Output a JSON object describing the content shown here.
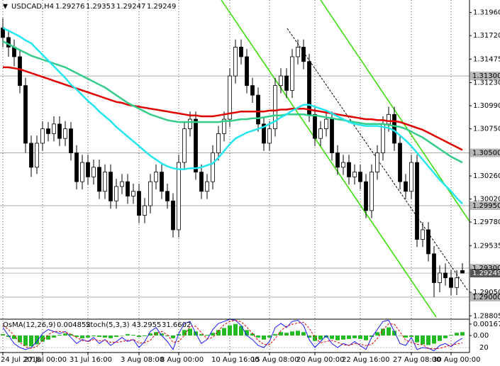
{
  "chart_data": {
    "type": "candlestick",
    "title": "USDCAD,H4",
    "categories": [
      "24 Jul 2018",
      null,
      null,
      null,
      null,
      null,
      null,
      "27 Jul 00:00",
      null,
      null,
      null,
      null,
      null,
      null,
      null,
      "31 Jul 16:00",
      null,
      null,
      null,
      null,
      null,
      null,
      null,
      null,
      "3 Aug 08:00",
      null,
      null,
      null,
      null,
      null,
      null,
      "8 Aug 00:00",
      null,
      null,
      null,
      null,
      null,
      null,
      null,
      null,
      "10 Aug 16:00",
      null,
      null,
      null,
      null,
      null,
      null,
      "15 Aug 08:00",
      null,
      null,
      null,
      null,
      null,
      null,
      null,
      "20 Aug 00:00",
      null,
      null,
      null,
      null,
      null,
      null,
      null,
      "22 Aug 16:00",
      null,
      null,
      null,
      null,
      null,
      null,
      null,
      null,
      "27 Aug 08:00",
      null,
      null,
      null,
      null,
      null,
      null,
      "30 Aug 00:00",
      null,
      null
    ],
    "candles": [
      [
        1.318,
        1.319,
        1.316,
        1.317
      ],
      [
        1.317,
        1.3178,
        1.315,
        1.316
      ],
      [
        1.316,
        1.3168,
        1.314,
        1.315
      ],
      [
        1.315,
        1.3158,
        1.3112,
        1.312
      ],
      [
        1.312,
        1.3128,
        1.305,
        1.306
      ],
      [
        1.306,
        1.3068,
        1.3025,
        1.3035
      ],
      [
        1.3035,
        1.3068,
        1.3028,
        1.306
      ],
      [
        1.306,
        1.3083,
        1.3052,
        1.3075
      ],
      [
        1.3075,
        1.3082,
        1.3062,
        1.307
      ],
      [
        1.307,
        1.3088,
        1.3062,
        1.308
      ],
      [
        1.308,
        1.3088,
        1.3057,
        1.3065
      ],
      [
        1.3065,
        1.3083,
        1.3057,
        1.3075
      ],
      [
        1.3075,
        1.3082,
        1.3042,
        1.305
      ],
      [
        1.305,
        1.3058,
        1.3012,
        1.302
      ],
      [
        1.302,
        1.3048,
        1.3012,
        1.304
      ],
      [
        1.304,
        1.3048,
        1.3017,
        1.3025
      ],
      [
        1.3025,
        1.3043,
        1.3017,
        1.3035
      ],
      [
        1.3035,
        1.3043,
        1.3002,
        1.301
      ],
      [
        1.301,
        1.3038,
        1.3002,
        1.303
      ],
      [
        1.303,
        1.3038,
        1.2992,
        1.3
      ],
      [
        1.3,
        1.3023,
        1.2992,
        1.3015
      ],
      [
        1.3015,
        1.3028,
        1.3007,
        1.302
      ],
      [
        1.302,
        1.3028,
        1.2997,
        1.3005
      ],
      [
        1.3005,
        1.3018,
        1.2997,
        1.301
      ],
      [
        1.301,
        1.3018,
        1.2977,
        1.2985
      ],
      [
        1.2985,
        1.3003,
        1.2977,
        1.2995
      ],
      [
        1.2995,
        1.3028,
        1.2987,
        1.302
      ],
      [
        1.302,
        1.3038,
        1.3012,
        1.303
      ],
      [
        1.303,
        1.3038,
        1.3002,
        1.301
      ],
      [
        1.301,
        1.3018,
        1.2992,
        1.3
      ],
      [
        1.3,
        1.3008,
        1.2962,
        1.297
      ],
      [
        1.297,
        1.3048,
        1.2962,
        1.304
      ],
      [
        1.304,
        1.3083,
        1.3032,
        1.3075
      ],
      [
        1.3075,
        1.3093,
        1.3067,
        1.3085
      ],
      [
        1.3085,
        1.3093,
        1.3022,
        1.303
      ],
      [
        1.303,
        1.3038,
        1.3002,
        1.301
      ],
      [
        1.301,
        1.3028,
        1.3002,
        1.302
      ],
      [
        1.302,
        1.3058,
        1.3012,
        1.305
      ],
      [
        1.305,
        1.3078,
        1.3042,
        1.307
      ],
      [
        1.307,
        1.3093,
        1.3062,
        1.3085
      ],
      [
        1.3085,
        1.3138,
        1.3077,
        1.313
      ],
      [
        1.313,
        1.3168,
        1.3122,
        1.316
      ],
      [
        1.316,
        1.3168,
        1.3142,
        1.315
      ],
      [
        1.315,
        1.3158,
        1.3112,
        1.312
      ],
      [
        1.312,
        1.3128,
        1.3102,
        1.311
      ],
      [
        1.311,
        1.3118,
        1.3072,
        1.308
      ],
      [
        1.308,
        1.3088,
        1.3052,
        1.306
      ],
      [
        1.306,
        1.3083,
        1.3052,
        1.3075
      ],
      [
        1.3075,
        1.3128,
        1.3067,
        1.312
      ],
      [
        1.312,
        1.3138,
        1.3112,
        1.313
      ],
      [
        1.313,
        1.3138,
        1.3107,
        1.3115
      ],
      [
        1.3115,
        1.3158,
        1.3107,
        1.315
      ],
      [
        1.315,
        1.3168,
        1.3142,
        1.316
      ],
      [
        1.316,
        1.3168,
        1.3137,
        1.3145
      ],
      [
        1.3145,
        1.3153,
        1.3082,
        1.309
      ],
      [
        1.309,
        1.3098,
        1.3057,
        1.3065
      ],
      [
        1.3065,
        1.3083,
        1.3057,
        1.3075
      ],
      [
        1.3075,
        1.3093,
        1.3067,
        1.3085
      ],
      [
        1.3085,
        1.3093,
        1.3042,
        1.305
      ],
      [
        1.305,
        1.3058,
        1.3027,
        1.3035
      ],
      [
        1.3035,
        1.3048,
        1.3027,
        1.304
      ],
      [
        1.304,
        1.3048,
        1.3017,
        1.3025
      ],
      [
        1.3025,
        1.3038,
        1.3017,
        1.303
      ],
      [
        1.303,
        1.3038,
        1.3012,
        1.302
      ],
      [
        1.302,
        1.3028,
        1.2982,
        1.299
      ],
      [
        1.299,
        1.3038,
        1.2982,
        1.303
      ],
      [
        1.303,
        1.3058,
        1.3022,
        1.305
      ],
      [
        1.305,
        1.3088,
        1.3042,
        1.308
      ],
      [
        1.308,
        1.3098,
        1.3072,
        1.309
      ],
      [
        1.309,
        1.3098,
        1.3052,
        1.306
      ],
      [
        1.306,
        1.3068,
        1.3012,
        1.302
      ],
      [
        1.302,
        1.3028,
        1.3002,
        1.301
      ],
      [
        1.301,
        1.3048,
        1.3002,
        1.304
      ],
      [
        1.304,
        1.3048,
        1.2952,
        1.296
      ],
      [
        1.296,
        1.2978,
        1.2952,
        1.297
      ],
      [
        1.297,
        1.2978,
        1.2937,
        1.2945
      ],
      [
        1.2945,
        1.2953,
        1.29,
        1.2915
      ],
      [
        1.2915,
        1.2933,
        1.2905,
        1.2925
      ],
      [
        1.2925,
        1.2935,
        1.2912,
        1.292
      ],
      [
        1.292,
        1.2928,
        1.2902,
        1.291
      ],
      [
        1.291,
        1.2928,
        1.2902,
        1.292
      ],
      [
        1.29276,
        1.29353,
        1.29247,
        1.29249
      ]
    ],
    "series": [
      {
        "color": "#e00000",
        "values": [
          1.3139,
          1.3139,
          1.3138,
          1.3137,
          1.3135,
          1.3133,
          1.3131,
          1.3129,
          1.3127,
          1.3125,
          1.3123,
          1.3121,
          1.3119,
          1.3117,
          1.3115,
          1.3113,
          1.3111,
          1.3109,
          1.3107,
          1.3105,
          1.3103,
          1.3102,
          1.31,
          1.3099,
          1.3098,
          1.3097,
          1.3096,
          1.3095,
          1.3094,
          1.3093,
          1.3092,
          1.3091,
          1.309,
          1.3089,
          1.3089,
          1.3088,
          1.3088,
          1.3088,
          1.3089,
          1.309,
          1.3091,
          1.3092,
          1.3093,
          1.3093,
          1.3093,
          1.3093,
          1.3093,
          1.3094,
          1.3094,
          1.3095,
          1.3095,
          1.3096,
          1.3096,
          1.3096,
          1.3095,
          1.3094,
          1.3093,
          1.3092,
          1.3091,
          1.309,
          1.3089,
          1.3088,
          1.3087,
          1.3086,
          1.3085,
          1.3085,
          1.3084,
          1.3084,
          1.3083,
          1.3083,
          1.3082,
          1.308,
          1.3078,
          1.3076,
          1.3074,
          1.3071,
          1.3068,
          1.3065,
          1.3062,
          1.3059,
          1.3056,
          1.3053
        ]
      },
      {
        "color": "#33cc88",
        "values": [
          1.3166,
          1.3163,
          1.316,
          1.3157,
          1.3154,
          1.3151,
          1.3149,
          1.3147,
          1.3145,
          1.3143,
          1.3141,
          1.3139,
          1.3136,
          1.3133,
          1.313,
          1.3127,
          1.3124,
          1.3121,
          1.3118,
          1.3114,
          1.311,
          1.3106,
          1.3102,
          1.3099,
          1.3096,
          1.3093,
          1.309,
          1.3088,
          1.3086,
          1.3084,
          1.3083,
          1.3082,
          1.3082,
          1.3082,
          1.3082,
          1.3082,
          1.3082,
          1.3082,
          1.3082,
          1.3083,
          1.3083,
          1.3084,
          1.3085,
          1.3085,
          1.3086,
          1.3086,
          1.3087,
          1.3088,
          1.3089,
          1.3089,
          1.309,
          1.309,
          1.309,
          1.309,
          1.3089,
          1.3089,
          1.3088,
          1.3087,
          1.3086,
          1.3085,
          1.3084,
          1.3083,
          1.3082,
          1.3081,
          1.308,
          1.308,
          1.308,
          1.308,
          1.3079,
          1.3078,
          1.3077,
          1.3075,
          1.3072,
          1.3069,
          1.3066,
          1.3062,
          1.3058,
          1.3054,
          1.305,
          1.3046,
          1.3043,
          1.304
        ]
      },
      {
        "color": "#22e6f0",
        "values": [
          1.318,
          1.3177,
          1.3174,
          1.3171,
          1.3167,
          1.3164,
          1.3158,
          1.3152,
          1.3146,
          1.314,
          1.3134,
          1.3128,
          1.3121,
          1.3116,
          1.311,
          1.3104,
          1.3099,
          1.3093,
          1.3088,
          1.3083,
          1.3077,
          1.3072,
          1.3067,
          1.3062,
          1.3057,
          1.3052,
          1.3047,
          1.3043,
          1.3039,
          1.3036,
          1.3034,
          1.3033,
          1.3033,
          1.3034,
          1.3034,
          1.3035,
          1.3037,
          1.3039,
          1.3045,
          1.3052,
          1.3059,
          1.3065,
          1.3068,
          1.3071,
          1.3073,
          1.3075,
          1.3077,
          1.308,
          1.3083,
          1.3087,
          1.309,
          1.3094,
          1.3097,
          1.31,
          1.31,
          1.3098,
          1.3096,
          1.3094,
          1.3091,
          1.3088,
          1.3085,
          1.3082,
          1.308,
          1.3079,
          1.3078,
          1.3078,
          1.3078,
          1.3077,
          1.3076,
          1.3073,
          1.3068,
          1.3063,
          1.3057,
          1.305,
          1.3043,
          1.3036,
          1.3029,
          1.3022,
          1.3016,
          1.301,
          1.3003,
          1.2997
        ]
      }
    ],
    "levels": [
      {
        "value": 1.313,
        "label": "1.31300"
      },
      {
        "value": 1.305,
        "label": "1.30500"
      },
      {
        "value": 1.2995,
        "label": "1.29950"
      },
      {
        "value": 1.293,
        "label": "1.29300"
      },
      {
        "value": 1.29,
        "label": "1.29000"
      }
    ],
    "ylim": [
      1.2877,
      1.3209
    ],
    "yticks": [
      {
        "value": 1.3196,
        "label": "1.31960"
      },
      {
        "value": 1.3172,
        "label": "1.31720"
      },
      {
        "value": 1.31475,
        "label": "1.31475"
      },
      {
        "value": 1.3123,
        "label": "1.31230"
      },
      {
        "value": 1.3099,
        "label": "1.30990"
      },
      {
        "value": 1.3075,
        "label": "1.30750"
      },
      {
        "value": 1.3026,
        "label": "1.30260"
      },
      {
        "value": 1.3002,
        "label": "1.30020"
      },
      {
        "value": 1.2978,
        "label": "1.29780"
      },
      {
        "value": 1.29535,
        "label": "1.29535"
      },
      {
        "value": 1.2905,
        "label": "1.29050"
      },
      {
        "value": 1.28805,
        "label": "1.28805"
      }
    ],
    "indicator": {
      "osma_name": "OsMA(12,26,9)",
      "osma_value": 0.004852,
      "stoch_name": "Stoch(5,3,3)",
      "osma": {
        "color": "#22bb22",
        "values": [
          0.0002,
          -0.0002,
          -0.0005,
          -0.001,
          -0.0015,
          -0.0016,
          -0.0013,
          -0.0009,
          -0.0006,
          -0.0003,
          0.0001,
          0.0003,
          0.0002,
          -0.0002,
          -0.0004,
          -0.0003,
          -0.0001,
          -0.0002,
          -0.0003,
          -0.0004,
          -0.0002,
          0,
          0.0002,
          0.0001,
          -0.0002,
          -0.0001,
          0.0003,
          0.0005,
          0.0003,
          -0.0001,
          -0.0004,
          0.0002,
          0.0008,
          0.001,
          0.0006,
          0.0002,
          0.0001,
          0.0004,
          0.0008,
          0.0011,
          0.0015,
          0.0017,
          0.0014,
          0.0008,
          0.0003,
          -0.0003,
          -0.0006,
          -0.0003,
          0.0002,
          0.0005,
          0.0004,
          0.0006,
          0.0007,
          0.0005,
          -0.0003,
          -0.0008,
          -0.0006,
          -0.0003,
          -0.0005,
          -0.0007,
          -0.0006,
          -0.0005,
          -0.0004,
          -0.0005,
          -0.0007,
          -0.0002,
          0.0005,
          0.001,
          0.0012,
          0.0007,
          0,
          -0.0003,
          -0.0002,
          -0.001,
          -0.0013,
          -0.0014,
          -0.0012,
          -0.0008,
          -0.0004,
          0.0001,
          0.0004,
          0.0005
        ]
      },
      "stoch_main": {
        "color": "#1a1aff",
        "axis": "y2",
        "values": [
          70,
          50,
          30,
          20,
          15,
          20,
          35,
          55,
          65,
          60,
          55,
          60,
          45,
          30,
          40,
          35,
          45,
          30,
          40,
          25,
          35,
          45,
          35,
          40,
          20,
          35,
          60,
          70,
          50,
          35,
          15,
          55,
          80,
          85,
          55,
          30,
          40,
          65,
          80,
          85,
          90,
          88,
          75,
          50,
          40,
          25,
          20,
          35,
          70,
          80,
          70,
          85,
          88,
          75,
          40,
          20,
          35,
          50,
          30,
          20,
          30,
          25,
          35,
          25,
          15,
          45,
          65,
          85,
          88,
          60,
          30,
          25,
          45,
          15,
          20,
          18,
          12,
          25,
          30,
          22,
          35,
          43.2955
        ]
      },
      "stoch_signal": {
        "color": "#e00000",
        "axis": "y2",
        "values": [
          75,
          65,
          50,
          33,
          22,
          18,
          23,
          37,
          52,
          60,
          60,
          58,
          53,
          45,
          38,
          35,
          40,
          37,
          38,
          33,
          33,
          35,
          38,
          40,
          32,
          32,
          38,
          55,
          60,
          52,
          33,
          35,
          50,
          73,
          73,
          57,
          42,
          45,
          62,
          77,
          85,
          88,
          84,
          71,
          55,
          38,
          28,
          27,
          42,
          62,
          73,
          78,
          81,
          83,
          68,
          45,
          32,
          35,
          38,
          33,
          27,
          25,
          30,
          28,
          25,
          28,
          42,
          65,
          79,
          78,
          59,
          38,
          33,
          28,
          27,
          18,
          17,
          18,
          22,
          26,
          29,
          31.6602
        ]
      },
      "ylim": [
        -0.0025,
        0.0024
      ],
      "yticks": [
        0.001678,
        {
          "value": 0,
          "label": "0.00"
        }
      ],
      "y2lim": [
        7.6,
        90.6
      ],
      "y2ticks": [
        20
      ]
    }
  }
}
